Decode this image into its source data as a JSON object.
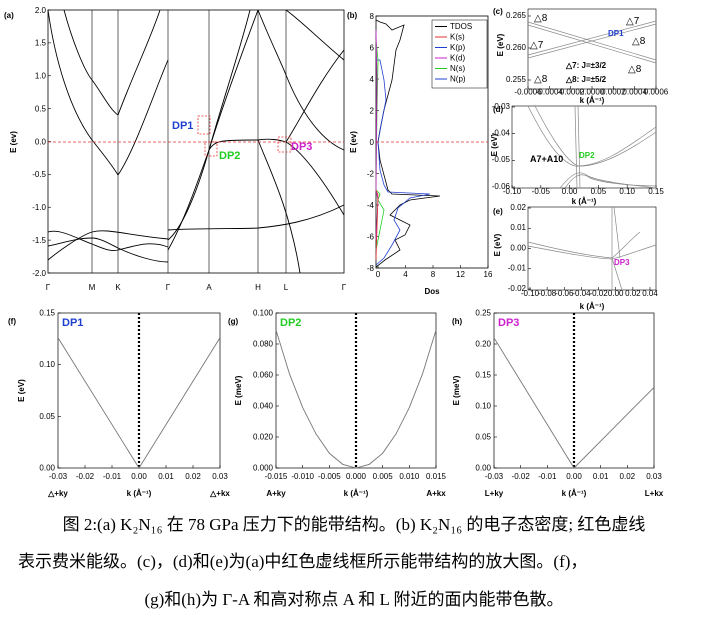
{
  "panel_a": {
    "label": "(a)",
    "ylabel": "E (ev)",
    "yticks": [
      "2.0",
      "1.5",
      "1.0",
      "0.5",
      "0.0",
      "-0.5",
      "-1.0",
      "-1.5",
      "-2.0"
    ],
    "kpoints": [
      "Γ",
      "M",
      "K",
      "Γ",
      "A",
      "H",
      "L",
      "Γ"
    ],
    "dp_labels": [
      "DP1",
      "DP2",
      "DP3"
    ]
  },
  "panel_b": {
    "label": "(b)",
    "ylabel": "E (ev)",
    "xlabel": "Dos",
    "yticks": [
      "8",
      "6",
      "4",
      "2",
      "0",
      "-2",
      "-4",
      "-6",
      "-8"
    ],
    "xticks": [
      "0",
      "4",
      "8",
      "12",
      "16"
    ],
    "legend": [
      "TDOS",
      "K(s)",
      "K(p)",
      "K(d)",
      "N(s)",
      "N(p)"
    ]
  },
  "panel_c": {
    "label": "(c)",
    "ylabel": "E (eV)",
    "xlabel": "k (Å⁻¹)",
    "yticks": [
      "0.265",
      "0.260",
      "0.255"
    ],
    "xticks": [
      "-0.0006",
      "-0.0004",
      "-0.0002",
      "0.0000",
      "0.0002",
      "0.0004",
      "0.0006"
    ],
    "annotations": [
      "△8",
      "△7",
      "DP1",
      "△7",
      "△8",
      "△8",
      "△7: J=±3/2",
      "△8: J=±5/2",
      "△8"
    ]
  },
  "panel_d": {
    "label": "(d)",
    "ylabel": "E (eV)",
    "xlabel": "k (Å⁻¹)",
    "yticks": [
      "-0.03",
      "-0.04",
      "-0.05",
      "-0.06"
    ],
    "xticks": [
      "-0.10",
      "-0.05",
      "0.00",
      "0.05",
      "0.10",
      "0.15"
    ],
    "annotations": [
      "A7+A10",
      "DP2"
    ]
  },
  "panel_e": {
    "label": "(e)",
    "ylabel": "E (eV)",
    "xlabel": "k (Å⁻¹)",
    "yticks": [
      "0.02",
      "0.01",
      "0.00",
      "-0.01",
      "-0.02"
    ],
    "xticks": [
      "-0.10",
      "-0.08",
      "-0.06",
      "-0.04",
      "-0.02",
      "0.00",
      "0.02",
      "0.04"
    ],
    "annotations": [
      "DP3"
    ]
  },
  "chart_data": [
    {
      "type": "line",
      "panel": "(f)",
      "dp": "DP1",
      "ylabel": "E (eV)",
      "xlabel": "k (Å⁻¹)",
      "xlim": [
        -0.03,
        0.03
      ],
      "ylim": [
        0,
        0.15
      ],
      "xticks": [
        "-0.03",
        "-0.02",
        "-0.01",
        "0.00",
        "0.01",
        "0.02",
        "0.03"
      ],
      "yticks": [
        "0.00",
        "0.05",
        "0.10",
        "0.15"
      ],
      "x_end_labels": [
        "△+ky",
        "△+kx"
      ],
      "series": [
        {
          "x": [
            -0.03,
            0,
            0.03
          ],
          "y": [
            0.126,
            0,
            0.126
          ]
        }
      ]
    },
    {
      "type": "line",
      "panel": "(g)",
      "dp": "DP2",
      "ylabel": "E (meV)",
      "xlabel": "k (Å⁻¹)",
      "xlim": [
        -0.015,
        0.015
      ],
      "ylim": [
        0,
        0.1
      ],
      "xticks": [
        "-0.015",
        "-0.010",
        "-0.005",
        "0.000",
        "0.005",
        "0.010",
        "0.015"
      ],
      "yticks": [
        "0.000",
        "0.020",
        "0.040",
        "0.060",
        "0.080",
        "0.100"
      ],
      "x_end_labels": [
        "A+ky",
        "A+kx"
      ],
      "series": [
        {
          "x": [
            -0.015,
            -0.0125,
            -0.01,
            -0.0075,
            -0.005,
            -0.0025,
            0,
            0.0025,
            0.005,
            0.0075,
            0.01,
            0.0125,
            0.015
          ],
          "y": [
            0.089,
            0.061,
            0.039,
            0.022,
            0.0095,
            0.0024,
            0,
            0.0024,
            0.0095,
            0.022,
            0.039,
            0.061,
            0.089
          ]
        }
      ]
    },
    {
      "type": "line",
      "panel": "(h)",
      "dp": "DP3",
      "ylabel": "E (meV)",
      "xlabel": "k (Å⁻¹)",
      "xlim": [
        -0.03,
        0.03
      ],
      "ylim": [
        0,
        0.25
      ],
      "xticks": [
        "-0.03",
        "-0.02",
        "-0.01",
        "0.00",
        "0.01",
        "0.02",
        "0.03"
      ],
      "yticks": [
        "0.00",
        "0.05",
        "0.10",
        "0.15",
        "0.20",
        "0.25"
      ],
      "x_end_labels": [
        "L+ky",
        "L+kx"
      ],
      "series": [
        {
          "x": [
            -0.03,
            0,
            0.03
          ],
          "y": [
            0.21,
            0,
            0.13
          ]
        }
      ]
    }
  ],
  "caption": {
    "line1": "图 2:(a) K₂N₁₆ 在 78 GPa 压力下的能带结构。(b) K₂N₁₆ 的电子态密度; 红色虚线",
    "line2": "表示费米能级。(c)，(d)和(e)为(a)中红色虚线框所示能带结构的放大图。(f)，",
    "line3": "(g)和(h)为 Γ-A 和高对称点 A 和 L 附近的面内能带色散。"
  },
  "colors": {
    "dp1": "#1f3fd1",
    "dp2": "#22cc22",
    "dp3": "#cc22cc",
    "fermi": "#e03030"
  }
}
